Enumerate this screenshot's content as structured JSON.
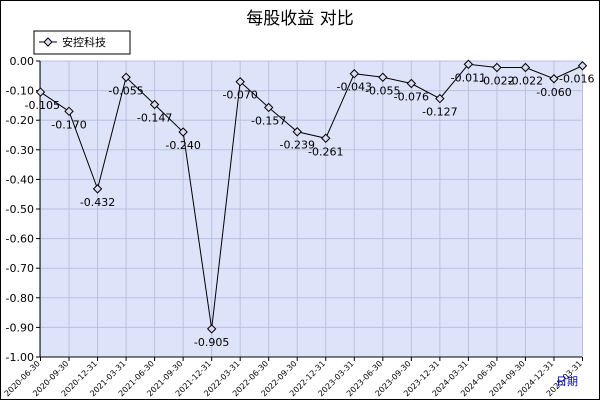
{
  "chart_data": {
    "type": "line",
    "title": "每股收益  对比",
    "xlabel": "日期",
    "ylabel": "",
    "ylim": [
      -1.0,
      0.0
    ],
    "y_ticks": [
      "0.00",
      "-0.10",
      "-0.20",
      "-0.30",
      "-0.40",
      "-0.50",
      "-0.60",
      "-0.70",
      "-0.80",
      "-0.90",
      "-1.00"
    ],
    "y_tick_values": [
      0.0,
      -0.1,
      -0.2,
      -0.3,
      -0.4,
      -0.5,
      -0.6,
      -0.7,
      -0.8,
      -0.9,
      -1.0
    ],
    "grid": true,
    "legend_position": "top-left",
    "categories": [
      "2020-06-30",
      "2020-09-30",
      "2020-12-31",
      "2021-03-31",
      "2021-06-30",
      "2021-09-30",
      "2021-12-31",
      "2022-03-31",
      "2022-06-30",
      "2022-09-30",
      "2022-12-31",
      "2023-03-31",
      "2023-06-30",
      "2023-09-30",
      "2023-12-31",
      "2024-03-31",
      "2024-06-30",
      "2024-09-30",
      "2024-12-31",
      "2025-03-31"
    ],
    "series": [
      {
        "name": "安控科技",
        "values": [
          -0.105,
          -0.17,
          -0.432,
          -0.055,
          -0.147,
          -0.24,
          -0.905,
          -0.07,
          -0.157,
          -0.239,
          -0.261,
          -0.043,
          -0.055,
          -0.076,
          -0.127,
          -0.011,
          -0.022,
          -0.022,
          -0.06,
          -0.016
        ],
        "labels": [
          "-0.105",
          "-0.170",
          "-0.432",
          "-0.055",
          "-0.147",
          "-0.240",
          "-0.905",
          "-0.070",
          "-0.157",
          "-0.239",
          "-0.261",
          "-0.043",
          "-0.055",
          "-0.076",
          "-0.127",
          "-0.011",
          "-0.022",
          "-0.022",
          "-0.060",
          "-0.016"
        ]
      }
    ],
    "colors": {
      "plot_background": "#dde3f8",
      "grid": "#b8c2e0",
      "line": "#000000",
      "marker_fill": "#d8dcf0"
    }
  }
}
